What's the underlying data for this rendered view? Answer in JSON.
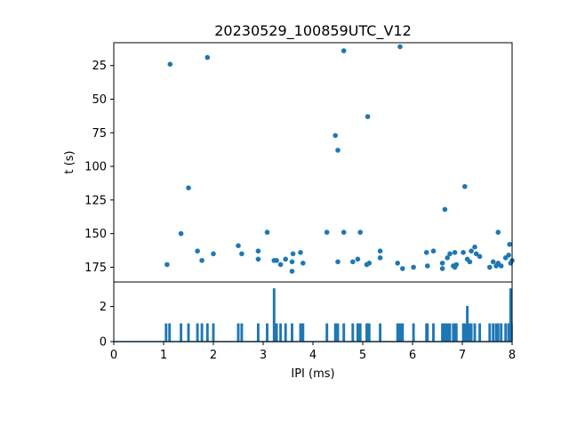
{
  "chart_data": [
    {
      "type": "scatter",
      "title": "20230529_100859UTC_V12",
      "xlabel": "",
      "ylabel": "t (s)",
      "xlim": [
        0,
        8
      ],
      "ylim": [
        186,
        8
      ],
      "y_inverted": true,
      "yticks": [
        25,
        50,
        75,
        100,
        125,
        150,
        175
      ],
      "color": "#1f77b4",
      "points": [
        [
          1.13,
          24
        ],
        [
          1.88,
          19
        ],
        [
          4.62,
          14
        ],
        [
          5.75,
          11
        ],
        [
          5.1,
          63
        ],
        [
          4.45,
          77
        ],
        [
          4.5,
          88
        ],
        [
          1.5,
          116
        ],
        [
          7.05,
          115
        ],
        [
          6.65,
          132
        ],
        [
          1.35,
          150
        ],
        [
          3.08,
          149
        ],
        [
          4.28,
          149
        ],
        [
          4.62,
          149
        ],
        [
          4.95,
          149
        ],
        [
          7.72,
          149
        ],
        [
          2.5,
          159
        ],
        [
          7.95,
          158
        ],
        [
          7.25,
          160
        ],
        [
          1.68,
          163
        ],
        [
          2.0,
          165
        ],
        [
          2.57,
          165
        ],
        [
          2.9,
          163
        ],
        [
          3.75,
          164
        ],
        [
          3.6,
          165
        ],
        [
          5.35,
          163
        ],
        [
          6.28,
          164
        ],
        [
          6.42,
          163
        ],
        [
          6.75,
          165
        ],
        [
          6.85,
          164
        ],
        [
          7.02,
          164
        ],
        [
          7.18,
          163
        ],
        [
          7.35,
          167
        ],
        [
          1.77,
          170
        ],
        [
          2.9,
          169
        ],
        [
          3.22,
          170
        ],
        [
          3.27,
          170
        ],
        [
          3.45,
          169
        ],
        [
          3.58,
          171
        ],
        [
          3.8,
          172
        ],
        [
          4.5,
          171
        ],
        [
          4.8,
          171
        ],
        [
          4.9,
          169
        ],
        [
          5.08,
          173
        ],
        [
          5.13,
          172
        ],
        [
          5.35,
          168
        ],
        [
          5.7,
          172
        ],
        [
          6.6,
          172
        ],
        [
          6.7,
          168
        ],
        [
          6.82,
          174
        ],
        [
          6.88,
          173
        ],
        [
          7.1,
          169
        ],
        [
          7.15,
          171
        ],
        [
          7.28,
          165
        ],
        [
          7.62,
          171
        ],
        [
          7.72,
          172
        ],
        [
          7.78,
          174
        ],
        [
          7.87,
          168
        ],
        [
          7.93,
          166
        ],
        [
          7.97,
          172
        ],
        [
          8.0,
          170
        ],
        [
          1.07,
          173
        ],
        [
          3.35,
          173
        ],
        [
          3.58,
          178
        ],
        [
          5.8,
          176
        ],
        [
          6.02,
          175
        ],
        [
          6.3,
          174
        ],
        [
          6.6,
          176
        ],
        [
          6.85,
          175
        ],
        [
          7.55,
          175
        ],
        [
          7.68,
          174
        ]
      ]
    },
    {
      "type": "line",
      "title": "",
      "xlabel": "IPI (ms)",
      "ylabel": "",
      "xlim": [
        0,
        8
      ],
      "ylim": [
        0,
        3.4
      ],
      "xticks": [
        0,
        1,
        2,
        3,
        4,
        5,
        6,
        7,
        8
      ],
      "yticks": [
        0,
        2
      ],
      "color": "#1f77b4",
      "spikes": [
        [
          1.05,
          1
        ],
        [
          1.12,
          1
        ],
        [
          1.35,
          1
        ],
        [
          1.5,
          1
        ],
        [
          1.68,
          1
        ],
        [
          1.77,
          1
        ],
        [
          1.88,
          1
        ],
        [
          2.0,
          1
        ],
        [
          2.5,
          1
        ],
        [
          2.57,
          1
        ],
        [
          2.9,
          1
        ],
        [
          3.08,
          1
        ],
        [
          3.22,
          3
        ],
        [
          3.27,
          1
        ],
        [
          3.35,
          1
        ],
        [
          3.45,
          1
        ],
        [
          3.58,
          1
        ],
        [
          3.75,
          1
        ],
        [
          3.8,
          1
        ],
        [
          4.28,
          1
        ],
        [
          4.45,
          1
        ],
        [
          4.5,
          1
        ],
        [
          4.62,
          1
        ],
        [
          4.8,
          1
        ],
        [
          4.9,
          1
        ],
        [
          4.95,
          1
        ],
        [
          5.08,
          1
        ],
        [
          5.13,
          1
        ],
        [
          5.35,
          1
        ],
        [
          5.7,
          1
        ],
        [
          5.75,
          1
        ],
        [
          5.8,
          1
        ],
        [
          6.02,
          1
        ],
        [
          6.28,
          1
        ],
        [
          6.3,
          1
        ],
        [
          6.42,
          1
        ],
        [
          6.6,
          1
        ],
        [
          6.65,
          1
        ],
        [
          6.7,
          1
        ],
        [
          6.75,
          1
        ],
        [
          6.82,
          1
        ],
        [
          6.85,
          1
        ],
        [
          6.88,
          1
        ],
        [
          7.02,
          1
        ],
        [
          7.05,
          1
        ],
        [
          7.1,
          2
        ],
        [
          7.15,
          1
        ],
        [
          7.18,
          1
        ],
        [
          7.25,
          1
        ],
        [
          7.35,
          1
        ],
        [
          7.55,
          1
        ],
        [
          7.62,
          1
        ],
        [
          7.68,
          1
        ],
        [
          7.72,
          1
        ],
        [
          7.78,
          1
        ],
        [
          7.87,
          1
        ],
        [
          7.93,
          1
        ],
        [
          7.97,
          3
        ],
        [
          8.0,
          1
        ]
      ]
    }
  ]
}
